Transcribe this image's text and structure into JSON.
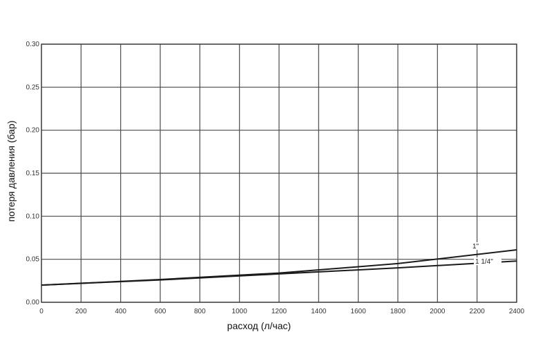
{
  "chart_data": {
    "type": "line",
    "title": "",
    "xlabel": "расход (л/час)",
    "ylabel": "потеря давления (бар)",
    "xlim": [
      0,
      2400
    ],
    "ylim": [
      0,
      0.3
    ],
    "grid": true,
    "x_ticks": [
      0,
      200,
      400,
      600,
      800,
      1000,
      1200,
      1400,
      1600,
      1800,
      2000,
      2200,
      2400
    ],
    "x_tick_labels": [
      "0",
      "200",
      "400",
      "600",
      "800",
      "1000",
      "1200",
      "1400",
      "1600",
      "1800",
      "2000",
      "2200",
      "2400"
    ],
    "y_ticks": [
      0,
      0.05,
      0.1,
      0.15,
      0.2,
      0.25,
      0.3
    ],
    "y_tick_labels": [
      "0.00",
      "0.05",
      "0.10",
      "0.15",
      "0.20",
      "0.25",
      "0.30"
    ],
    "series": [
      {
        "name": "1\"",
        "x": [
          0,
          600,
          1200,
          1800,
          2400
        ],
        "y": [
          0.02,
          0.0265,
          0.034,
          0.045,
          0.061
        ],
        "color": "#1a1a1a"
      },
      {
        "name": "1 1/4\"",
        "x": [
          0,
          600,
          1200,
          1800,
          2400
        ],
        "y": [
          0.02,
          0.026,
          0.033,
          0.04,
          0.048
        ],
        "color": "#1a1a1a"
      }
    ]
  },
  "colors": {
    "grid": "#4a4a4a",
    "frame": "#3a3a3a",
    "series": "#1a1a1a",
    "background": "#ffffff"
  }
}
